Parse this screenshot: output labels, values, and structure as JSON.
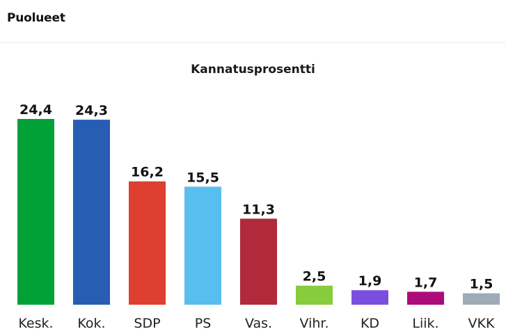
{
  "header": {
    "title": "Puolueet"
  },
  "chart_data": {
    "type": "bar",
    "title": "Kannatusprosentti",
    "xlabel": "",
    "ylabel": "",
    "ylim": [
      0,
      24.4
    ],
    "grid": false,
    "legend": "none",
    "categories": [
      "Kesk.",
      "Kok.",
      "SDP",
      "PS",
      "Vas.",
      "Vihr.",
      "KD",
      "Liik.",
      "VKK"
    ],
    "value_labels": [
      "24,4",
      "24,3",
      "16,2",
      "15,5",
      "11,3",
      "2,5",
      "1,9",
      "1,7",
      "1,5"
    ],
    "values": [
      24.4,
      24.3,
      16.2,
      15.5,
      11.3,
      2.5,
      1.9,
      1.7,
      1.5
    ],
    "colors": [
      "#01a138",
      "#275eb3",
      "#dd3f31",
      "#57bfef",
      "#b02a3b",
      "#86cc3d",
      "#7a4fe0",
      "#ad0b7a",
      "#9fabb6"
    ]
  }
}
